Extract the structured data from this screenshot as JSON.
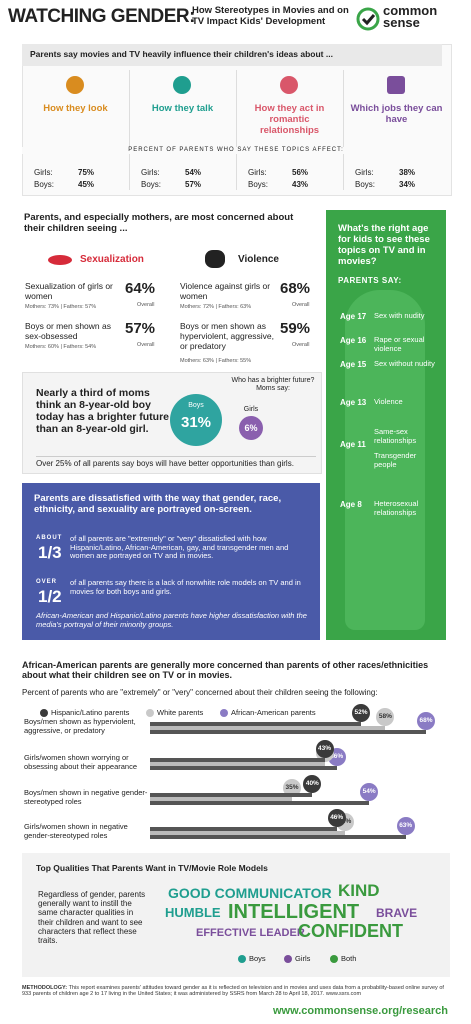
{
  "header": {
    "title": "WATCHING GENDER:",
    "subtitle": "How Stereotypes in Movies and on TV Impact Kids' Development",
    "logo": "common sense"
  },
  "influence": {
    "heading": "Parents say movies and TV heavily influence their children's ideas about ...",
    "percent_caption": "PERCENT OF PARENTS WHO SAY THESE TOPICS AFFECT:",
    "girls_label": "Girls:",
    "boys_label": "Boys:",
    "topics": [
      {
        "label": "How they look",
        "color": "#d98c1f",
        "girls": "75%",
        "boys": "45%"
      },
      {
        "label": "How they talk",
        "color": "#1f9e8f",
        "girls": "54%",
        "boys": "57%"
      },
      {
        "label": "How they act in romantic relationships",
        "color": "#d9576a",
        "girls": "56%",
        "boys": "43%"
      },
      {
        "label": "Which jobs they can have",
        "color": "#7a4e9b",
        "girls": "38%",
        "boys": "34%"
      }
    ]
  },
  "concerns": {
    "heading": "Parents, and especially mothers, are most concerned about their children seeing ...",
    "overall": "Overall",
    "groups": [
      {
        "title": "Sexualization",
        "items": [
          {
            "text": "Sexualization of girls or women",
            "pct": "64%",
            "detail": "Mothers: 73% | Fathers: 57%"
          },
          {
            "text": "Boys or men shown as sex-obsessed",
            "pct": "57%",
            "detail": "Mothers: 60% | Fathers: 54%"
          }
        ]
      },
      {
        "title": "Violence",
        "items": [
          {
            "text": "Violence against girls or women",
            "pct": "68%",
            "detail": "Mothers: 72% | Fathers: 63%"
          },
          {
            "text": "Boys or men shown as hyperviolent, aggressive, or predatory",
            "pct": "59%",
            "detail": "Mothers: 63% | Fathers: 55%"
          }
        ]
      }
    ]
  },
  "future": {
    "text": "Nearly a third of moms think an 8-year-old boy today has a brighter future than an 8-year-old girl.",
    "question": "Who has a brighter future? Moms say:",
    "boys": {
      "label": "Boys",
      "value": "31%"
    },
    "girls": {
      "label": "Girls",
      "value": "6%"
    },
    "footnote": "Over 25% of all parents say boys will have better opportunities than girls."
  },
  "ages": {
    "question": "What's the right age for kids to see these topics on TV and in movies?",
    "parents_say": "PARENTS SAY:",
    "items": [
      {
        "age": "Age 17",
        "topics": [
          "Sex with nudity"
        ]
      },
      {
        "age": "Age 16",
        "topics": [
          "Rape or sexual violence"
        ]
      },
      {
        "age": "Age 15",
        "topics": [
          "Sex without nudity"
        ]
      },
      {
        "age": "Age 13",
        "topics": [
          "Violence"
        ]
      },
      {
        "age": "Age 11",
        "topics": [
          "Same-sex relationships",
          "Transgender people"
        ]
      },
      {
        "age": "Age 8",
        "topics": [
          "Heterosexual relationships"
        ]
      }
    ]
  },
  "portrayal": {
    "heading": "Parents are dissatisfied with the way that gender, race, ethnicity, and sexuality are portrayed on-screen.",
    "stats": [
      {
        "qualifier": "ABOUT",
        "fraction": "1/3",
        "text": "of all parents are \"extremely\" or \"very\" dissatisfied with how Hispanic/Latino, African-American, gay, and transgender men and women are portrayed on TV and in movies."
      },
      {
        "qualifier": "OVER",
        "fraction": "1/2",
        "text": "of all parents say there is a lack of nonwhite role models on TV and in movies for both boys and girls."
      }
    ],
    "note": "African-American and Hispanic/Latino parents have higher dissatisfaction with the media's portrayal of their minority groups."
  },
  "chart_data": {
    "type": "bar",
    "title": "African-American parents are generally more concerned than parents of other races/ethnicities about what their children see on TV or in movies.",
    "subtitle": "Percent of parents who are \"extremely\" or \"very\" concerned about their children seeing the following:",
    "categories": [
      "Boys/men shown as hyperviolent, aggressive, or predatory",
      "Girls/women shown worrying or obsessing about their appearance",
      "Boys/men shown in negative gender-stereotyped roles",
      "Girls/women shown in negative gender-stereotyped roles"
    ],
    "series": [
      {
        "name": "Hispanic/Latino parents",
        "color": "#3a3a3a",
        "values": [
          52,
          43,
          40,
          46
        ],
        "value_labels": [
          "52%",
          "43%",
          "40%",
          "46%"
        ]
      },
      {
        "name": "White parents",
        "color": "#c9c9c9",
        "values": [
          58,
          43,
          35,
          48
        ],
        "value_labels": [
          "58%",
          "43%",
          "35%",
          "48%"
        ]
      },
      {
        "name": "African-American parents",
        "color": "#8a7bc4",
        "values": [
          68,
          46,
          54,
          63
        ],
        "value_labels": [
          "68%",
          "46%",
          "54%",
          "63%"
        ]
      }
    ]
  },
  "qualities": {
    "heading": "Top Qualities That Parents Want in TV/Movie Role Models",
    "text": "Regardless of gender, parents generally want to instill the same character qualities in their children and want to see characters that reflect these traits.",
    "groups": [
      {
        "name": "Boys",
        "color": "#1f9e8f"
      },
      {
        "name": "Girls",
        "color": "#7a4e9b"
      },
      {
        "name": "Both",
        "color": "#3a9a3e"
      }
    ],
    "words": [
      {
        "text": "GOOD COMMUNICATOR",
        "group": 0
      },
      {
        "text": "KIND",
        "group": 2
      },
      {
        "text": "HUMBLE",
        "group": 0
      },
      {
        "text": "INTELLIGENT",
        "group": 2
      },
      {
        "text": "BRAVE",
        "group": 1
      },
      {
        "text": "EFFECTIVE LEADER",
        "group": 1
      },
      {
        "text": "CONFIDENT",
        "group": 2
      }
    ]
  },
  "methodology": {
    "label": "METHODOLOGY:",
    "text": "This report examines parents' attitudes toward gender as it is reflected on television and in movies and uses data from a probability-based online survey of 933 parents of children age 2 to 17 living in the United States; it was administered by SSRS from March 28 to April 18, 2017. www.ssrs.com"
  },
  "footer": {
    "url": "www.commonsense.org/research"
  }
}
